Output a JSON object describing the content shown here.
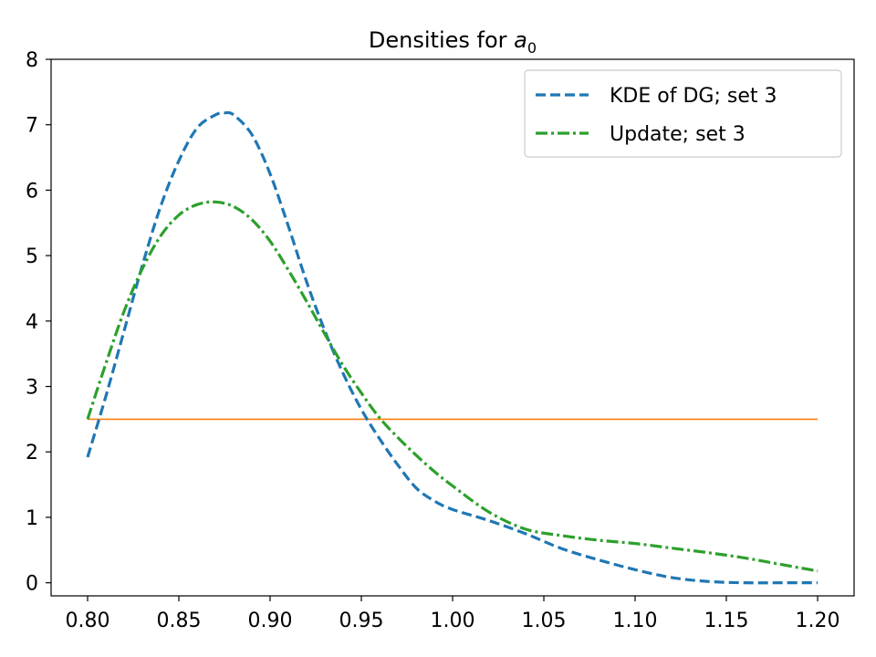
{
  "chart_data": {
    "type": "line",
    "title": "Densities for ",
    "title_math": "a",
    "title_math_sub": "0",
    "xlabel": "",
    "ylabel": "",
    "xlim": [
      0.78,
      1.22
    ],
    "ylim": [
      -0.2,
      8.0
    ],
    "xticks": [
      "0.80",
      "0.85",
      "0.90",
      "0.95",
      "1.00",
      "1.05",
      "1.10",
      "1.15",
      "1.20"
    ],
    "yticks": [
      "0",
      "1",
      "2",
      "3",
      "4",
      "5",
      "6",
      "7",
      "8"
    ],
    "grid": false,
    "legend_position": "top-right",
    "series": [
      {
        "name": "KDE of DG; set 3",
        "color": "#1f77b4",
        "style": "dashed",
        "in_legend": true,
        "x": [
          0.8,
          0.81,
          0.82,
          0.83,
          0.84,
          0.85,
          0.86,
          0.87,
          0.875,
          0.88,
          0.89,
          0.9,
          0.91,
          0.92,
          0.93,
          0.94,
          0.95,
          0.96,
          0.97,
          0.98,
          0.99,
          1.0,
          1.02,
          1.04,
          1.06,
          1.08,
          1.1,
          1.12,
          1.14,
          1.16,
          1.18,
          1.2
        ],
        "y": [
          1.92,
          2.85,
          3.85,
          4.85,
          5.75,
          6.45,
          6.95,
          7.15,
          7.18,
          7.15,
          6.85,
          6.25,
          5.45,
          4.6,
          3.85,
          3.2,
          2.65,
          2.2,
          1.8,
          1.45,
          1.25,
          1.12,
          0.95,
          0.75,
          0.52,
          0.35,
          0.2,
          0.08,
          0.02,
          0.0,
          0.0,
          0.0
        ]
      },
      {
        "name": "Update; set 3",
        "color": "#2ca02c",
        "style": "dashdot",
        "in_legend": true,
        "x": [
          0.8,
          0.81,
          0.82,
          0.83,
          0.84,
          0.85,
          0.86,
          0.87,
          0.88,
          0.89,
          0.9,
          0.91,
          0.92,
          0.93,
          0.94,
          0.95,
          0.96,
          0.97,
          0.98,
          0.99,
          1.0,
          1.02,
          1.04,
          1.06,
          1.08,
          1.1,
          1.12,
          1.14,
          1.16,
          1.18,
          1.2
        ],
        "y": [
          2.5,
          3.35,
          4.15,
          4.8,
          5.3,
          5.62,
          5.78,
          5.82,
          5.75,
          5.55,
          5.22,
          4.78,
          4.3,
          3.8,
          3.32,
          2.9,
          2.52,
          2.22,
          1.95,
          1.7,
          1.48,
          1.08,
          0.82,
          0.72,
          0.65,
          0.6,
          0.53,
          0.46,
          0.38,
          0.28,
          0.18
        ]
      },
      {
        "name": "",
        "color": "#ff7f0e",
        "style": "solid",
        "in_legend": false,
        "x": [
          0.8,
          1.2
        ],
        "y": [
          2.5,
          2.5
        ]
      }
    ]
  }
}
